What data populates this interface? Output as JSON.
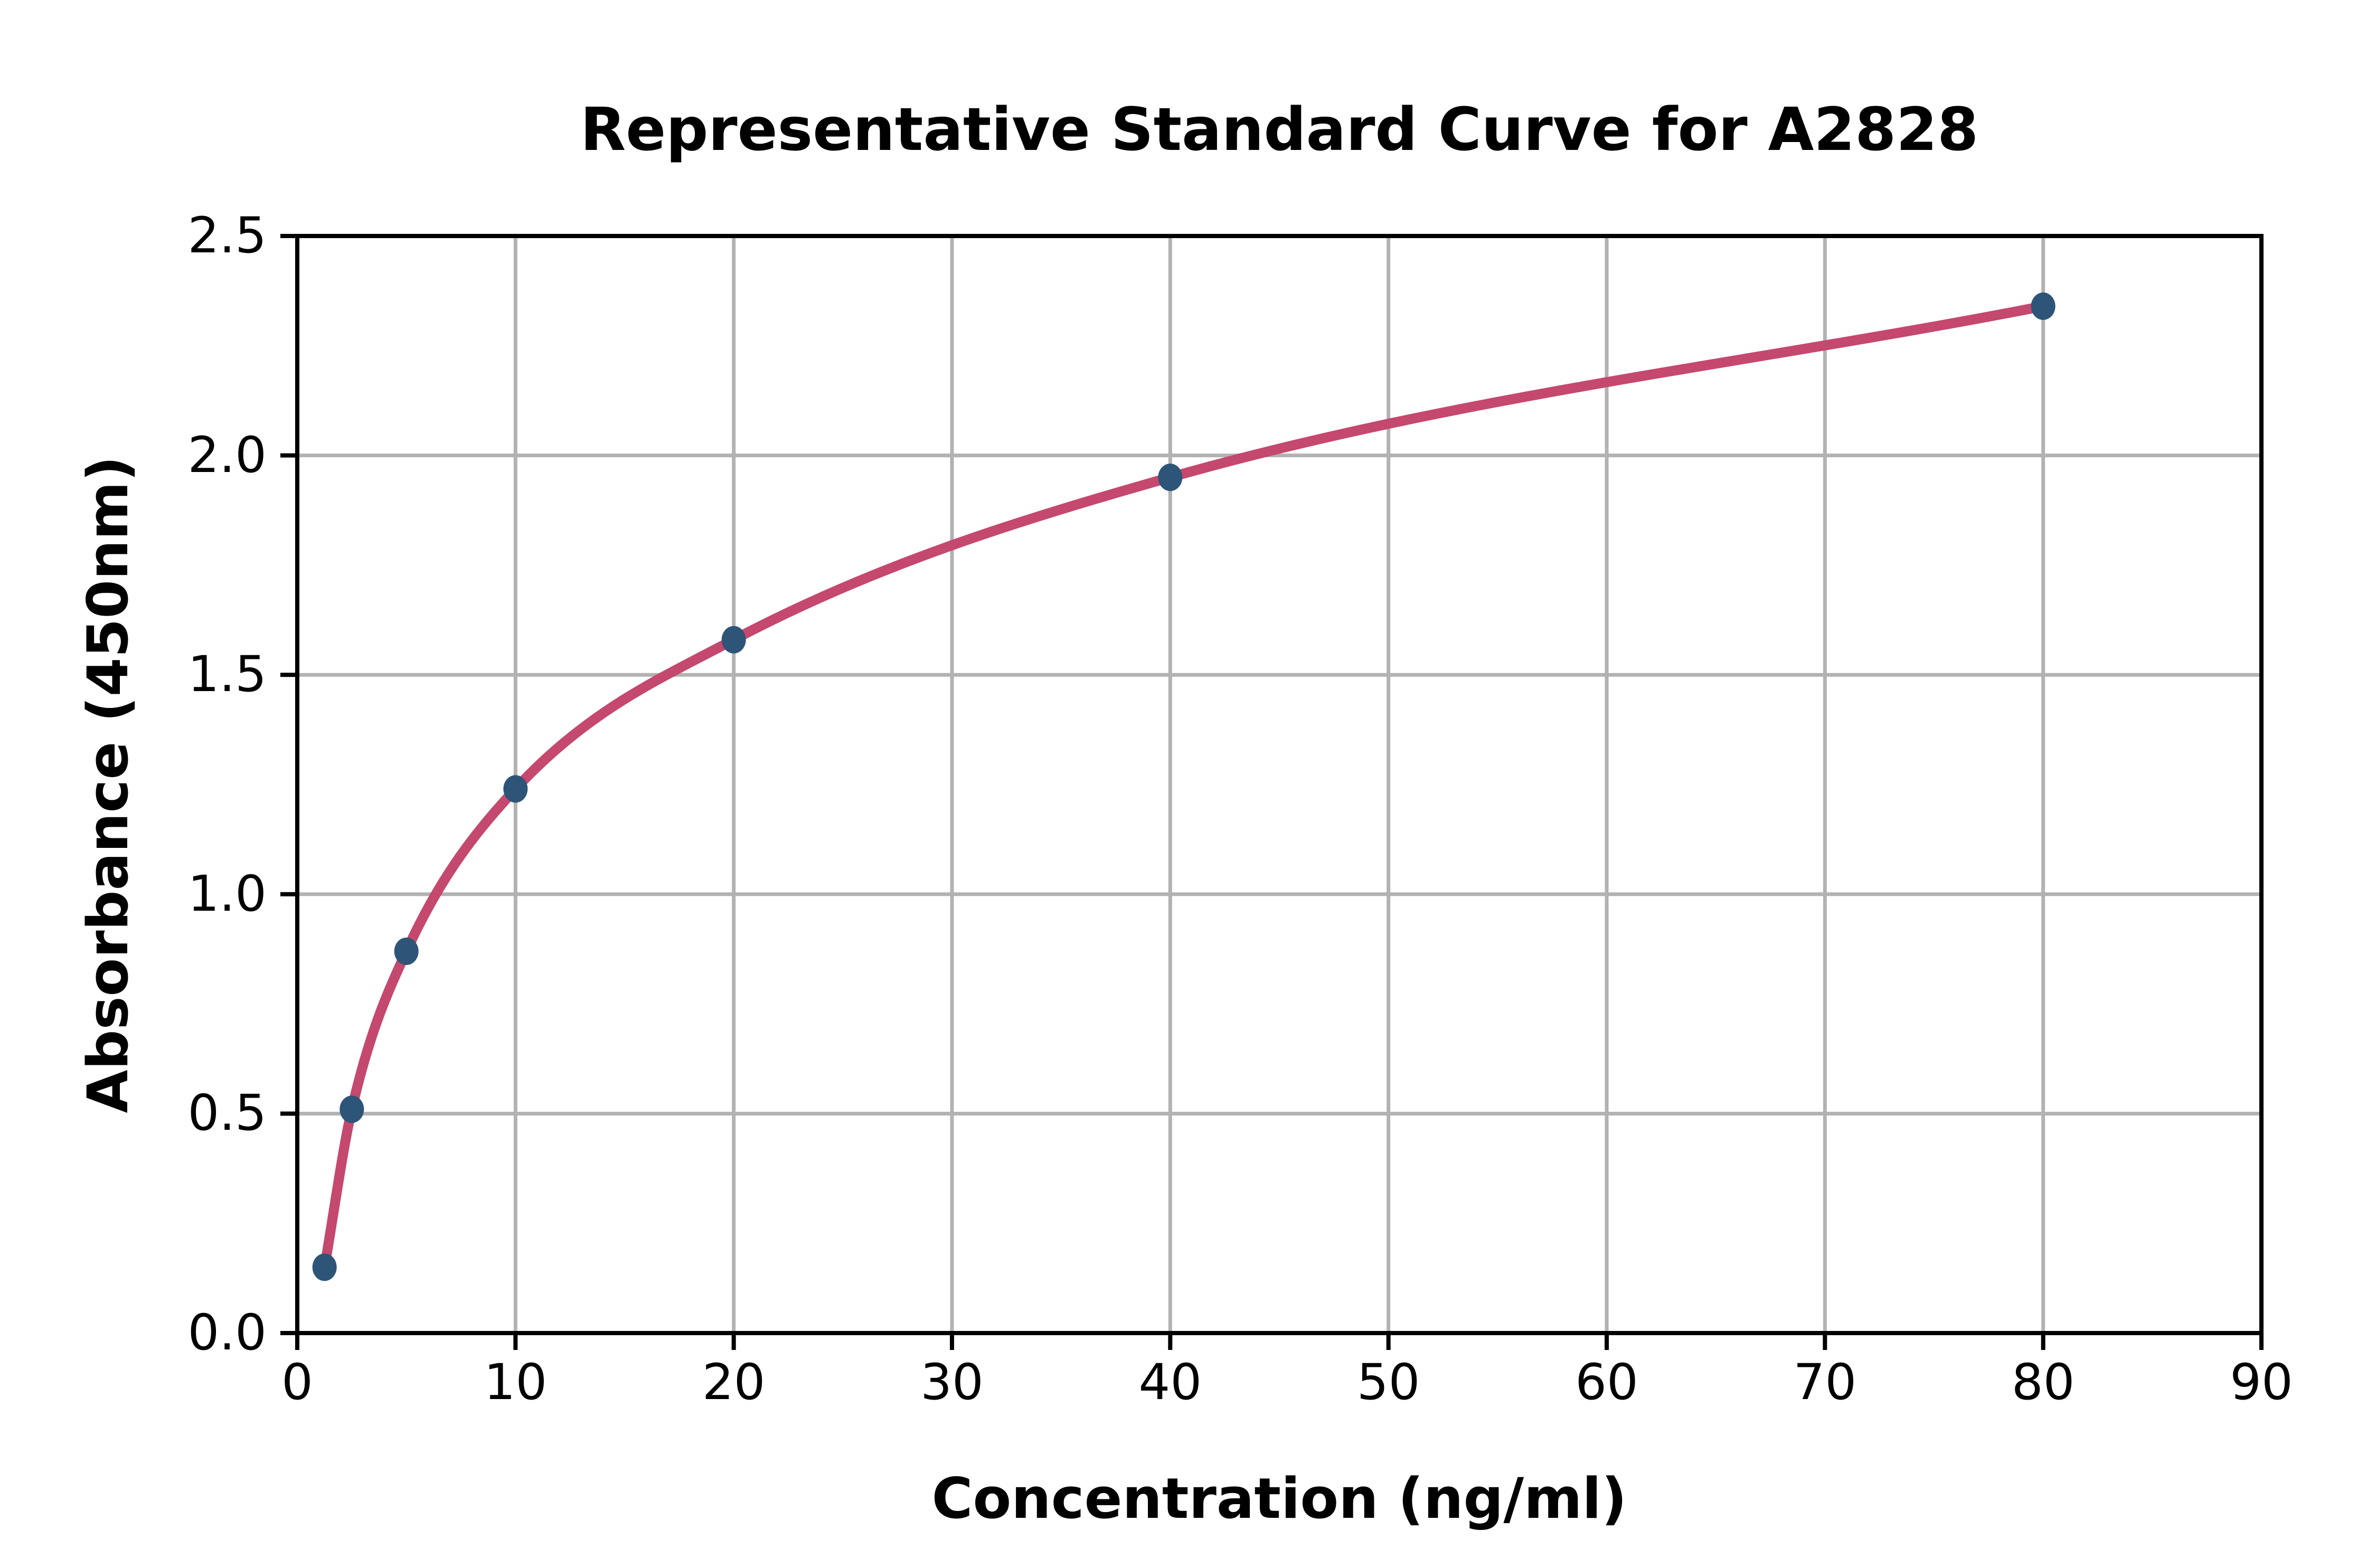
{
  "figure": {
    "background": "#ffffff"
  },
  "chart_data": {
    "type": "scatter",
    "title": "Representative Standard Curve for A2828",
    "xlabel": "Concentration (ng/ml)",
    "ylabel": "Absorbance (450nm)",
    "x": [
      1.25,
      2.5,
      5,
      10,
      20,
      40,
      80
    ],
    "y": [
      0.15,
      0.51,
      0.87,
      1.24,
      1.58,
      1.95,
      2.34
    ],
    "curve": "smooth fitted line through all data points",
    "xlim": [
      0,
      90
    ],
    "ylim": [
      0,
      2.5
    ],
    "x_tick_labels": [
      "0",
      "10",
      "20",
      "30",
      "40",
      "50",
      "60",
      "70",
      "80",
      "90"
    ],
    "y_tick_labels": [
      "0.0",
      "0.5",
      "1.0",
      "1.5",
      "2.0",
      "2.5"
    ],
    "grid": true,
    "legend_position": "none",
    "colors": {
      "curve": "#c5486e",
      "marker": "#2d5578",
      "grid": "#b2b2b2",
      "axis": "#000000",
      "text": "#000000"
    }
  }
}
